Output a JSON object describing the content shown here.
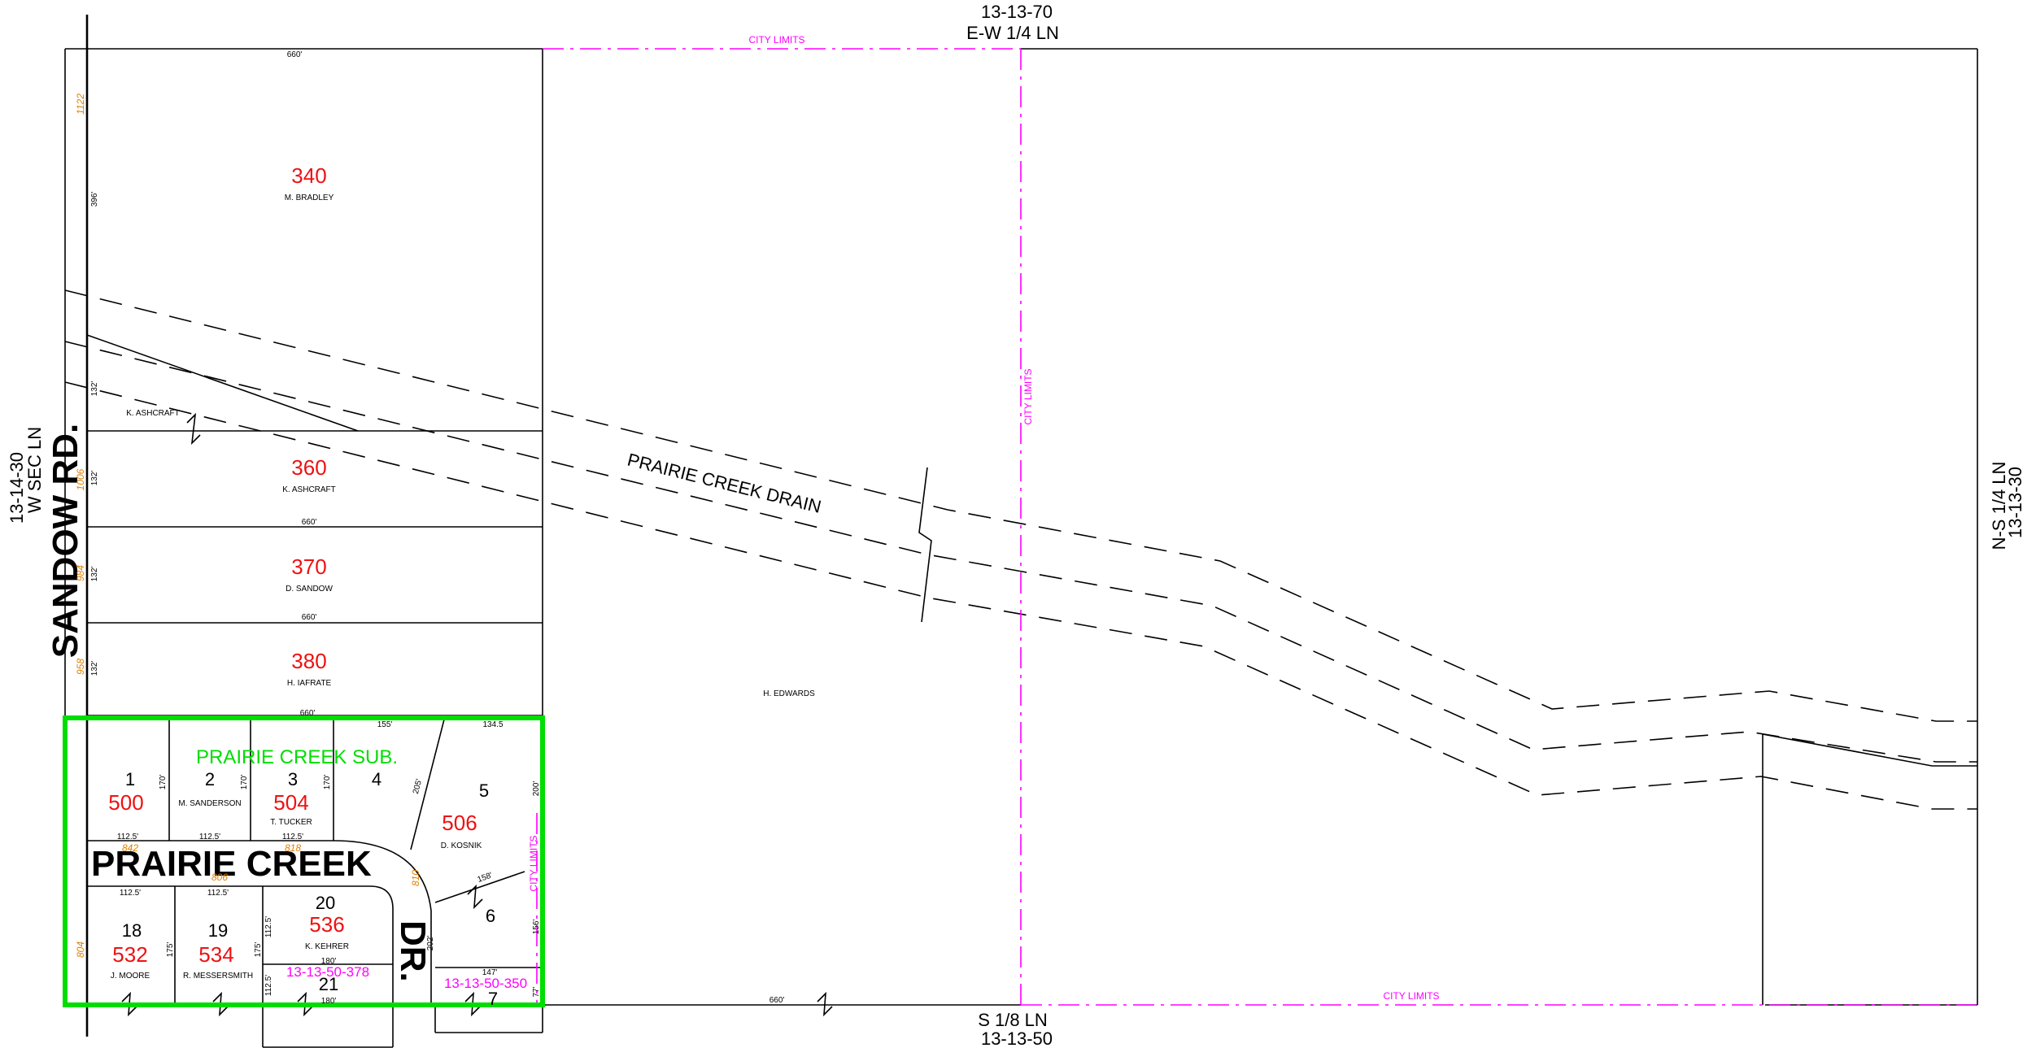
{
  "section_lines": {
    "top": {
      "label": "E-W 1/4 LN",
      "code": "13-13-70"
    },
    "bottom": {
      "label": "S 1/8 LN",
      "code": "13-13-50"
    },
    "left": {
      "label": "W SEC LN",
      "code": "13-14-30"
    },
    "right": {
      "label": "N-S 1/4 LN",
      "code": "13-13-30"
    }
  },
  "roads": {
    "sandow": "SANDOW RD.",
    "prairie_creek": "PRAIRIE CREEK",
    "dr": "DR."
  },
  "drain": "PRAIRIE CREEK DRAIN",
  "subdivision": "PRAIRIE CREEK SUB.",
  "city_limits": "CITY LIMITS",
  "parcels": {
    "p340": {
      "num": "340",
      "owner": "M. BRADLEY"
    },
    "pash": {
      "owner": "K. ASHCRAFT"
    },
    "p360": {
      "num": "360",
      "owner": "K. ASHCRAFT"
    },
    "p370": {
      "num": "370",
      "owner": "D. SANDOW"
    },
    "p380": {
      "num": "380",
      "owner": "H. IAFRATE"
    },
    "pedw": {
      "owner": "H. EDWARDS"
    },
    "p500": {
      "num": "500",
      "lot": "1"
    },
    "p502": {
      "lot": "2",
      "owner": "M. SANDERSON"
    },
    "p504": {
      "num": "504",
      "lot": "3",
      "owner": "T. TUCKER"
    },
    "p4": {
      "lot": "4"
    },
    "p506": {
      "num": "506",
      "lot": "5",
      "owner": "D. KOSNIK"
    },
    "p6": {
      "lot": "6"
    },
    "p7": {
      "lot": "7"
    },
    "p532": {
      "num": "532",
      "lot": "18",
      "owner": "J. MOORE"
    },
    "p534": {
      "num": "534",
      "lot": "19",
      "owner": "R. MESSERSMITH"
    },
    "p536": {
      "num": "536",
      "lot": "20",
      "owner": "K. KEHRER"
    },
    "p21": {
      "lot": "21"
    }
  },
  "codes": {
    "c378": "13-13-50-378",
    "c350": "13-13-50-350"
  },
  "dims": {
    "d660": "660'",
    "d396": "396'",
    "d132": "132'",
    "d155": "155'",
    "d1345": "134.5",
    "d170": "170'",
    "d205": "205'",
    "d200": "200'",
    "d1125": "112.5'",
    "d175": "175'",
    "d180": "180'",
    "d158": "158'",
    "d156": "156'",
    "d147": "147'",
    "d77": "77'",
    "d202": "202'"
  },
  "addr": {
    "a1122": "1122",
    "a1006": "1006",
    "a958": "958",
    "a984": "984",
    "a804": "804",
    "a842": "842",
    "a806": "806",
    "a818": "818",
    "a810": "810"
  }
}
